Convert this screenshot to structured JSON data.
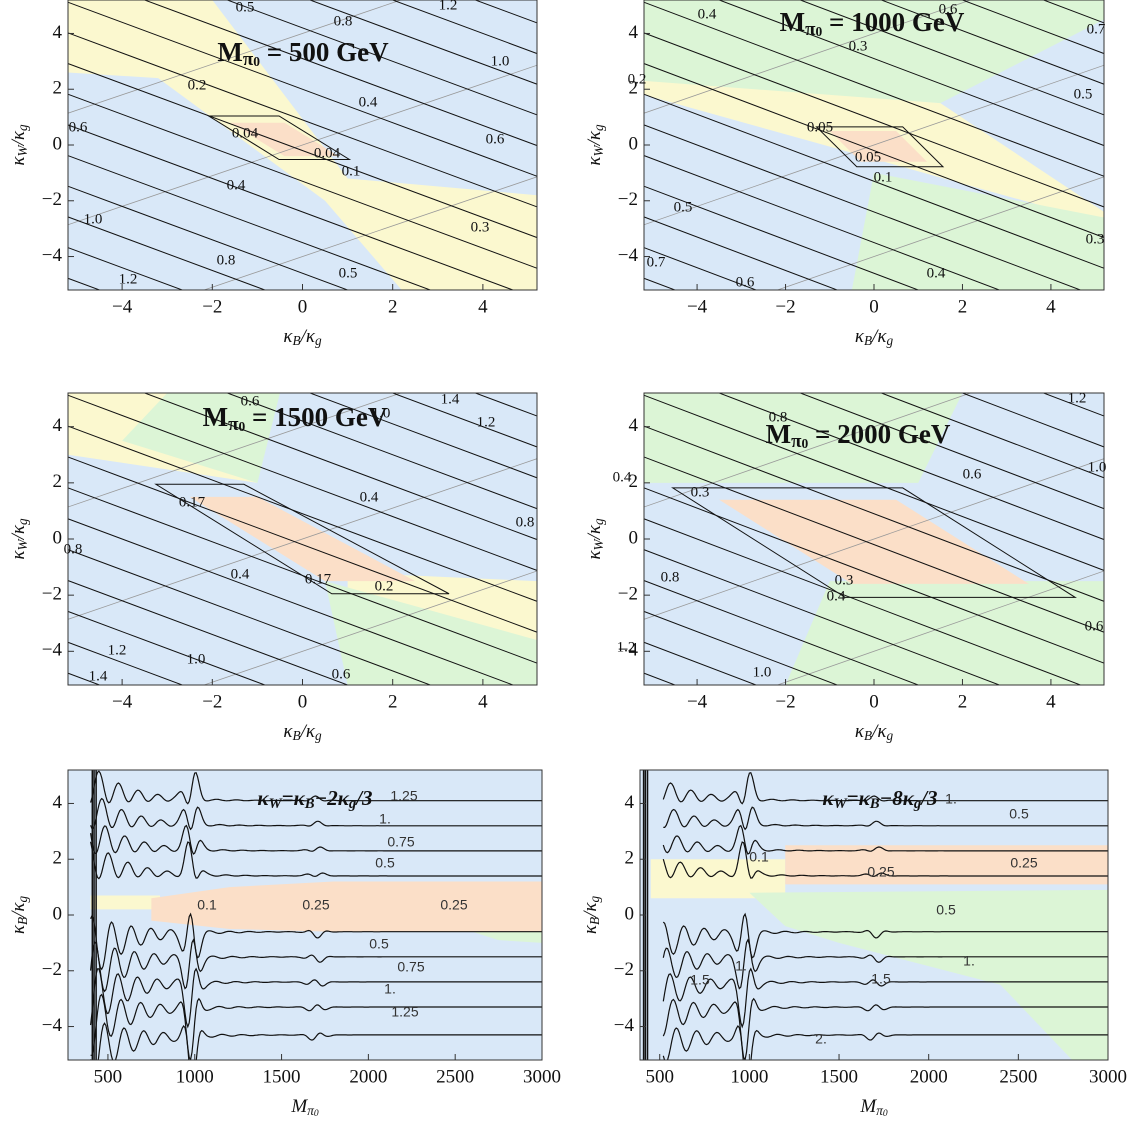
{
  "chart_data": [
    {
      "type": "contour",
      "title": [
        "M",
        "π",
        "0",
        " = 500 GeV"
      ],
      "x_label": [
        "κ",
        "B",
        "/κ",
        "g"
      ],
      "y_label": [
        "κ",
        "W",
        "/κ",
        "g"
      ],
      "xlim": [
        -5.2,
        5.2
      ],
      "ylim": [
        -5.2,
        5.2
      ],
      "xticks": [
        {
          "value": -4,
          "label": "−4"
        },
        {
          "value": -2,
          "label": "−2"
        },
        0,
        2,
        4
      ],
      "yticks": [
        {
          "value": -4,
          "label": "−4"
        },
        {
          "value": -2,
          "label": "−2"
        },
        0,
        2,
        4
      ],
      "contour_labels": [
        0.5,
        0.8,
        1.2,
        {
          "value": 1,
          "label": "1.0"
        },
        0.2,
        0.4,
        0.6,
        0.04,
        0.04,
        0.6,
        0.4,
        0.1,
        {
          "value": 1,
          "label": "1.0"
        },
        0.3,
        0.8,
        1.2,
        0.5
      ]
    },
    {
      "type": "contour",
      "title": [
        "M",
        "π",
        "0",
        " = 1000 GeV"
      ],
      "x_label": [
        "κ",
        "B",
        "/κ",
        "g"
      ],
      "y_label": [
        "κ",
        "W",
        "/κ",
        "g"
      ],
      "xlim": [
        -5.2,
        5.2
      ],
      "ylim": [
        -5.2,
        5.2
      ],
      "xticks": [
        {
          "value": -4,
          "label": "−4"
        },
        {
          "value": -2,
          "label": "−2"
        },
        0,
        2,
        4
      ],
      "yticks": [
        {
          "value": -4,
          "label": "−4"
        },
        {
          "value": -2,
          "label": "−2"
        },
        0,
        2,
        4
      ],
      "contour_labels": [
        0.4,
        0.6,
        0.7,
        0.3,
        0.2,
        0.5,
        0.05,
        0.05,
        0.1,
        0.5,
        0.3,
        0.7,
        0.4,
        0.6
      ]
    },
    {
      "type": "contour",
      "title": [
        "M",
        "π",
        "0",
        " = 1500 GeV"
      ],
      "x_label": [
        "κ",
        "B",
        "/κ",
        "g"
      ],
      "y_label": [
        "κ",
        "W",
        "/κ",
        "g"
      ],
      "xlim": [
        -5.2,
        5.2
      ],
      "ylim": [
        -5.2,
        5.2
      ],
      "xticks": [
        {
          "value": -4,
          "label": "−4"
        },
        {
          "value": -2,
          "label": "−2"
        },
        0,
        2,
        4
      ],
      "yticks": [
        {
          "value": -4,
          "label": "−4"
        },
        {
          "value": -2,
          "label": "−2"
        },
        0,
        2,
        4
      ],
      "contour_labels": [
        0.6,
        {
          "value": 1,
          "label": "1.0"
        },
        1.4,
        1.2,
        0.17,
        0.4,
        0.8,
        0.8,
        0.4,
        0.17,
        0.2,
        1.2,
        {
          "value": 1,
          "label": "1.0"
        },
        1.4,
        0.6
      ]
    },
    {
      "type": "contour",
      "title": [
        "M",
        "π",
        "0",
        " = 2000 GeV"
      ],
      "x_label": [
        "κ",
        "B",
        "/κ",
        "g"
      ],
      "y_label": [
        "κ",
        "W",
        "/κ",
        "g"
      ],
      "xlim": [
        -5.2,
        5.2
      ],
      "ylim": [
        -5.2,
        5.2
      ],
      "xticks": [
        {
          "value": -4,
          "label": "−4"
        },
        {
          "value": -2,
          "label": "−2"
        },
        0,
        2,
        4
      ],
      "yticks": [
        {
          "value": -4,
          "label": "−4"
        },
        {
          "value": -2,
          "label": "−2"
        },
        0,
        2,
        4
      ],
      "contour_labels": [
        1.2,
        0.8,
        {
          "value": 1,
          "label": "1.0"
        },
        0.6,
        0.4,
        0.3,
        0.8,
        0.3,
        0.4,
        0.6,
        1.2,
        {
          "value": 1,
          "label": "1.0"
        }
      ]
    },
    {
      "type": "contour",
      "title": [
        "κ",
        "W",
        "=κ",
        "B",
        "−2κ",
        "g",
        "/3"
      ],
      "x_label": [
        "M",
        "π",
        "0"
      ],
      "y_label": [
        "κ",
        "B",
        "/κ",
        "g"
      ],
      "xlim": [
        270,
        3000
      ],
      "ylim": [
        -5.2,
        5.2
      ],
      "xticks": [
        500,
        1000,
        1500,
        2000,
        2500,
        3000
      ],
      "yticks": [
        {
          "value": -4,
          "label": "−4"
        },
        {
          "value": -2,
          "label": "−2"
        },
        0,
        2,
        4
      ],
      "contour_labels": [
        1.25,
        {
          "value": 1,
          "label": "1."
        },
        0.75,
        0.5,
        0.1,
        0.25,
        0.25,
        0.5,
        0.75,
        {
          "value": 1,
          "label": "1."
        },
        1.25
      ]
    },
    {
      "type": "contour",
      "title": [
        "κ",
        "W",
        "=κ",
        "B",
        "−8κ",
        "g",
        "/3"
      ],
      "x_label": [
        "M",
        "π",
        "0"
      ],
      "y_label": [
        "κ",
        "B",
        "/κ",
        "g"
      ],
      "xlim": [
        390,
        3000
      ],
      "ylim": [
        -5.2,
        5.2
      ],
      "xticks": [
        500,
        1000,
        1500,
        2000,
        2500,
        3000
      ],
      "yticks": [
        {
          "value": -4,
          "label": "−4"
        },
        {
          "value": -2,
          "label": "−2"
        },
        0,
        2,
        4
      ],
      "contour_labels": [
        {
          "value": 1,
          "label": "1."
        },
        0.5,
        0.1,
        0.25,
        0.25,
        0.5,
        {
          "value": 1,
          "label": "1."
        },
        {
          "value": 1,
          "label": "1."
        },
        1.5,
        1.5,
        {
          "value": 2,
          "label": "2."
        }
      ]
    }
  ]
}
